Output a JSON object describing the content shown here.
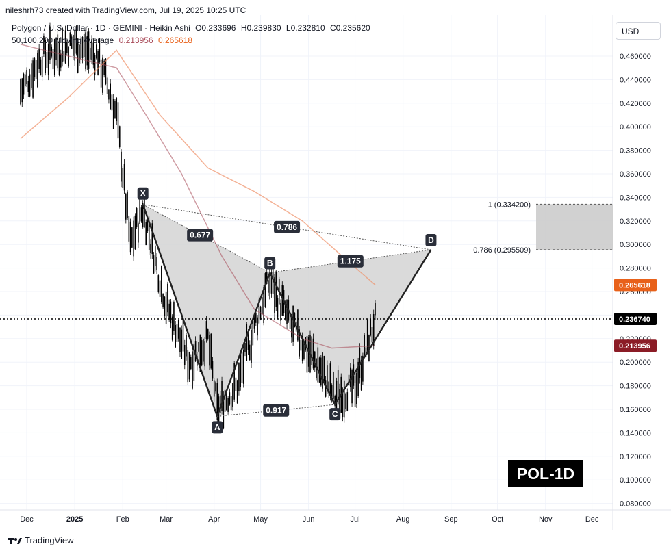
{
  "header": {
    "byline": "nileshrh73 created with TradingView.com, Jul 19, 2025 10:25 UTC",
    "symbol_line": "Polygon / U.S. Dollar · 1D · GEMINI · Heikin Ashi",
    "ohlc": [
      "O0.233696",
      "H0.239830",
      "L0.232810",
      "C0.235620"
    ],
    "ma_label": "50,100,200 Moving Average",
    "ma_values": [
      "0.213956",
      "0.265618"
    ]
  },
  "currency_button": "USD",
  "watermark": "POL-1D",
  "footer": {
    "brand": "TradingView"
  },
  "colors": {
    "ma_fast": "#a84a58",
    "ma_slow": "#f0926a",
    "price_badge": "#000000",
    "ma_fast_badge": "#8b1c26",
    "ma_slow_badge": "#e8611a",
    "pattern_fill": "#d3d3d3",
    "fib_box": "#cccccc"
  },
  "chart_data": {
    "type": "candlestick",
    "chart_style": "Heikin Ashi",
    "x_ticks": [
      "Dec",
      "2025",
      "Feb",
      "Mar",
      "Apr",
      "May",
      "Jun",
      "Jul",
      "Aug",
      "Sep",
      "Oct",
      "Nov",
      "Dec"
    ],
    "y_ticks": [
      "0.460000",
      "0.440000",
      "0.420000",
      "0.400000",
      "0.380000",
      "0.360000",
      "0.340000",
      "0.320000",
      "0.300000",
      "0.280000",
      "0.260000",
      "0.240000",
      "0.220000",
      "0.200000",
      "0.180000",
      "0.160000",
      "0.140000",
      "0.120000",
      "0.100000",
      "0.080000"
    ],
    "ylim": [
      0.08,
      0.46
    ],
    "current_price": 0.23674,
    "price_label": "0.236740",
    "ma_labels": [
      "0.265618",
      "0.213956"
    ],
    "harmonic_pattern": {
      "points": [
        {
          "label": "X",
          "date": "2025-02-18",
          "price": 0.334
        },
        {
          "label": "A",
          "date": "2025-04-07",
          "price": 0.154
        },
        {
          "label": "B",
          "date": "2025-05-11",
          "price": 0.276
        },
        {
          "label": "C",
          "date": "2025-06-22",
          "price": 0.164
        },
        {
          "label": "D",
          "date": "2025-08-23",
          "price": 0.2955
        }
      ],
      "ratios": [
        {
          "value": "0.677",
          "between": "X-B"
        },
        {
          "value": "0.786",
          "between": "X-D"
        },
        {
          "value": "1.175",
          "between": "B-D"
        },
        {
          "value": "0.917",
          "between": "A-C"
        }
      ]
    },
    "fib_levels": [
      {
        "label": "1 (0.334200)",
        "price": 0.3342
      },
      {
        "label": "0.786 (0.295509)",
        "price": 0.295509
      }
    ],
    "moving_averages": [
      {
        "name": "MA fast",
        "end_value": 0.213956
      },
      {
        "name": "MA slow",
        "end_value": 0.265618
      }
    ]
  }
}
